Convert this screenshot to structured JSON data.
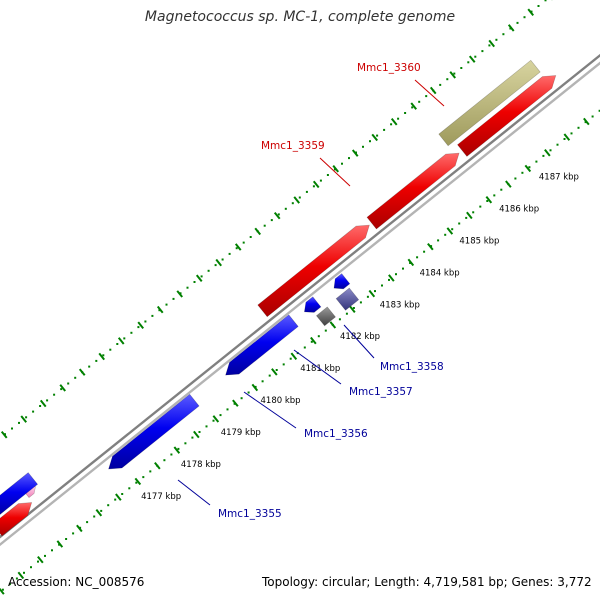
{
  "title": "Magnetococcus sp. MC-1, complete genome",
  "footer": {
    "accession": "Accession: NC_008576",
    "topology": "Topology: circular; Length: 4,719,581 bp; Genes: 3,772"
  },
  "scale_labels": [
    "4177 kbp",
    "4178 kbp",
    "4179 kbp",
    "4180 kbp",
    "4181 kbp",
    "4182 kbp",
    "4183 kbp",
    "4184 kbp",
    "4185 kbp",
    "4186 kbp",
    "4187 kbp"
  ],
  "gene_labels": {
    "reverse": [
      "Mmc1_3355",
      "Mmc1_3356",
      "Mmc1_3357",
      "Mmc1_3358"
    ],
    "forward": [
      "Mmc1_3359",
      "Mmc1_3360"
    ]
  },
  "colors": {
    "forward_gene": "#ff0000",
    "reverse_gene": "#0000ff",
    "other_gene": "#b8b478",
    "label_forward": "#cc0000",
    "label_reverse": "#000099",
    "tick": "#008000",
    "backbone": "#a0a0a0"
  }
}
